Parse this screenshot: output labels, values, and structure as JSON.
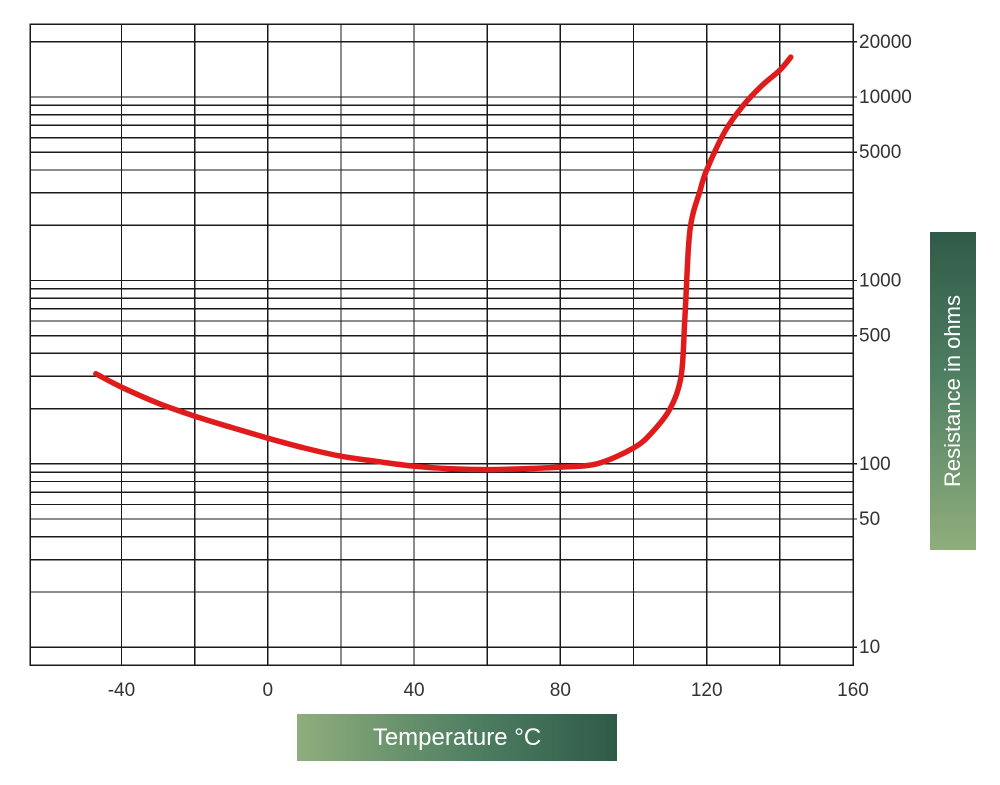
{
  "chart_data": {
    "type": "line",
    "title": "",
    "xlabel": "Temperature °C",
    "ylabel": "Resistance in ohms",
    "xlim": [
      -65,
      160
    ],
    "ylim": [
      8,
      25000
    ],
    "yscale": "log",
    "grid": true,
    "x_ticks": [
      -40,
      0,
      40,
      80,
      120,
      160
    ],
    "x_tick_labels": [
      "-40",
      "0",
      "40",
      "80",
      "120",
      "160"
    ],
    "y_ticks": [
      10,
      50,
      100,
      500,
      1000,
      5000,
      10000,
      20000
    ],
    "y_tick_labels": [
      "10",
      "50",
      "100",
      "500",
      "1000",
      "5000",
      "10000",
      "20000"
    ],
    "line_color": "#e01b1b",
    "series": [
      {
        "x": [
          -47,
          -40,
          -30,
          -20,
          -10,
          0,
          10,
          20,
          30,
          40,
          50,
          60,
          70,
          80,
          90,
          100,
          105,
          110,
          113,
          114,
          115,
          116,
          118,
          120,
          125,
          130,
          135,
          140,
          143
        ],
        "y": [
          310,
          262,
          214,
          182,
          158,
          138,
          122,
          110,
          103,
          97,
          94,
          93,
          94,
          96,
          100,
          122,
          148,
          200,
          300,
          600,
          1500,
          2200,
          3000,
          4000,
          6500,
          9000,
          11500,
          14000,
          16500
        ]
      }
    ]
  }
}
